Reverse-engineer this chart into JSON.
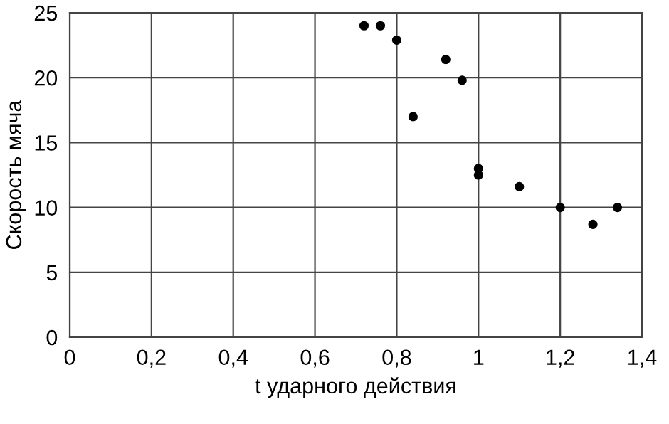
{
  "chart_data": {
    "type": "scatter",
    "xlabel": "t ударного действия",
    "ylabel": "Скорость мяча",
    "x": [
      0.72,
      0.76,
      0.8,
      0.84,
      0.92,
      0.96,
      1.0,
      1.0,
      1.1,
      1.2,
      1.28,
      1.34
    ],
    "values": [
      24,
      24,
      22.9,
      17,
      21.4,
      19.8,
      13,
      12.5,
      11.6,
      10,
      8.7,
      10
    ],
    "color": "#000000",
    "marker": "circle",
    "grid": true,
    "xlim": [
      0,
      1.4
    ],
    "xticks": [
      {
        "value": 0,
        "label": "0"
      },
      {
        "value": 0.2,
        "label": "0,2"
      },
      {
        "value": 0.4,
        "label": "0,4"
      },
      {
        "value": 0.6,
        "label": "0,6"
      },
      {
        "value": 0.8,
        "label": "0,8"
      },
      {
        "value": 1,
        "label": "1"
      },
      {
        "value": 1.2,
        "label": "1,2"
      },
      {
        "value": 1.4,
        "label": "1,4"
      }
    ],
    "ylim": [
      0,
      25
    ],
    "yticks": [
      0,
      5,
      10,
      15,
      20,
      25
    ]
  }
}
